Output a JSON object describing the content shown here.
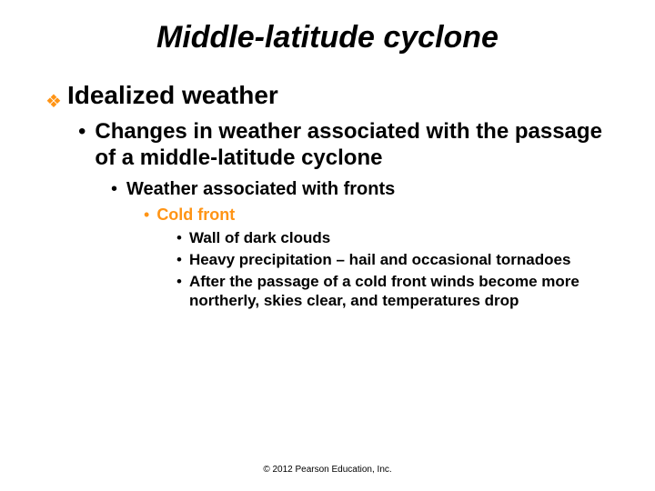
{
  "colors": {
    "accent": "#ff9415",
    "text": "#000000",
    "background": "#ffffff"
  },
  "title": "Middle-latitude cyclone",
  "level1": {
    "text": "Idealized weather"
  },
  "level2": {
    "text": "Changes in weather associated with the passage of a middle-latitude cyclone"
  },
  "level3": {
    "text": "Weather associated with fronts"
  },
  "level4": {
    "text": "Cold front"
  },
  "level5": [
    {
      "text": "Wall of dark clouds"
    },
    {
      "text": "Heavy precipitation – hail and occasional tornadoes"
    },
    {
      "text": "After the passage of a cold front winds become more northerly, skies clear, and temperatures drop"
    }
  ],
  "copyright": "© 2012 Pearson Education, Inc.",
  "typography": {
    "title_fontsize": 34,
    "title_style": "bold italic",
    "l1_fontsize": 28,
    "l2_fontsize": 24,
    "l3_fontsize": 20,
    "l4_fontsize": 18,
    "l5_fontsize": 17,
    "copyright_fontsize": 10,
    "font_family": "Arial"
  },
  "bullets": {
    "l1": "❖",
    "l2": "•",
    "l3": "•",
    "l4": "•",
    "l5": "•"
  }
}
